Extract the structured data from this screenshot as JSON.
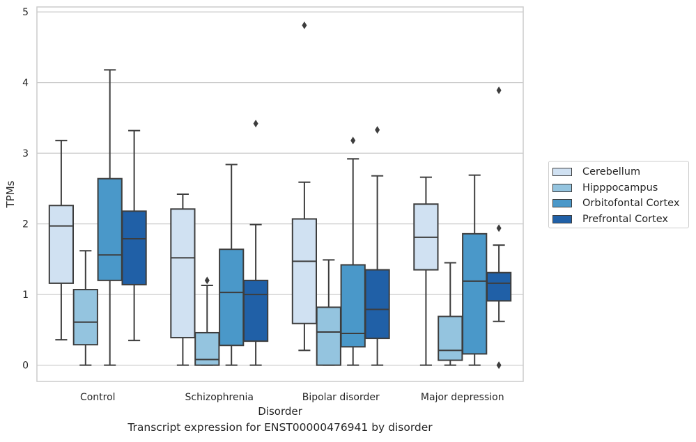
{
  "chart_data": {
    "type": "boxplot",
    "xlabel": "Disorder",
    "ylabel": "TPMs",
    "caption": "Transcript expression for ENST00000476941 by disorder",
    "ylim": [
      -0.23,
      5.07
    ],
    "yticks": [
      "0",
      "1",
      "2",
      "3",
      "4",
      "5"
    ],
    "categories": [
      "Control",
      "Schizophrenia",
      "Bipolar disorder",
      "Major depression"
    ],
    "legend_position": "center-right, outside plot",
    "grid": "horizontal",
    "series": [
      {
        "name": "Cerebellum",
        "color": "#d0e1f2",
        "boxes": [
          {
            "whislo": 0.36,
            "q1": 1.16,
            "med": 1.97,
            "q3": 2.26,
            "whishi": 3.18,
            "fliers": []
          },
          {
            "whislo": 0.0,
            "q1": 0.39,
            "med": 1.52,
            "q3": 2.21,
            "whishi": 2.42,
            "fliers": []
          },
          {
            "whislo": 0.21,
            "q1": 0.59,
            "med": 1.47,
            "q3": 2.07,
            "whishi": 2.59,
            "fliers": [
              4.81
            ]
          },
          {
            "whislo": 0.0,
            "q1": 1.35,
            "med": 1.81,
            "q3": 2.28,
            "whishi": 2.66,
            "fliers": []
          }
        ]
      },
      {
        "name": "Hipppocampus",
        "color": "#94c4df",
        "boxes": [
          {
            "whislo": 0.0,
            "q1": 0.29,
            "med": 0.61,
            "q3": 1.07,
            "whishi": 1.62,
            "fliers": []
          },
          {
            "whislo": 0.0,
            "q1": 0.0,
            "med": 0.08,
            "q3": 0.46,
            "whishi": 1.13,
            "fliers": [
              1.2
            ]
          },
          {
            "whislo": 0.0,
            "q1": 0.0,
            "med": 0.47,
            "q3": 0.82,
            "whishi": 1.49,
            "fliers": []
          },
          {
            "whislo": 0.0,
            "q1": 0.07,
            "med": 0.21,
            "q3": 0.69,
            "whishi": 1.45,
            "fliers": []
          }
        ]
      },
      {
        "name": "Orbitofontal Cortex",
        "color": "#4a98c9",
        "boxes": [
          {
            "whislo": 0.0,
            "q1": 1.2,
            "med": 1.56,
            "q3": 2.64,
            "whishi": 4.18,
            "fliers": []
          },
          {
            "whislo": 0.0,
            "q1": 0.28,
            "med": 1.03,
            "q3": 1.64,
            "whishi": 2.84,
            "fliers": []
          },
          {
            "whislo": 0.0,
            "q1": 0.26,
            "med": 0.45,
            "q3": 1.42,
            "whishi": 2.92,
            "fliers": [
              3.18
            ]
          },
          {
            "whislo": 0.0,
            "q1": 0.16,
            "med": 1.19,
            "q3": 1.86,
            "whishi": 2.69,
            "fliers": []
          }
        ]
      },
      {
        "name": "Prefrontal Cortex",
        "color": "#2060a7",
        "boxes": [
          {
            "whislo": 0.35,
            "q1": 1.14,
            "med": 1.79,
            "q3": 2.18,
            "whishi": 3.32,
            "fliers": []
          },
          {
            "whislo": 0.0,
            "q1": 0.34,
            "med": 1.0,
            "q3": 1.2,
            "whishi": 1.99,
            "fliers": [
              3.42
            ]
          },
          {
            "whislo": 0.0,
            "q1": 0.38,
            "med": 0.79,
            "q3": 1.35,
            "whishi": 2.68,
            "fliers": [
              3.33
            ]
          },
          {
            "whislo": 0.62,
            "q1": 0.91,
            "med": 1.16,
            "q3": 1.31,
            "whishi": 1.7,
            "fliers": [
              3.89,
              1.94,
              0.0
            ]
          }
        ]
      }
    ]
  }
}
